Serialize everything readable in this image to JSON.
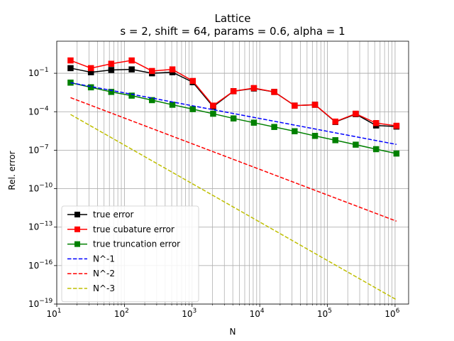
{
  "chart_data": {
    "type": "line",
    "title": "Lattice",
    "subtitle": "s = 2, shift = 64, params = 0.6, alpha = 1",
    "xlabel": "N",
    "ylabel": "Rel. error",
    "xscale": "log",
    "yscale": "log",
    "xlim": [
      10,
      1584893
    ],
    "ylim": [
      1e-19,
      31.6
    ],
    "grid": "major and minor on x, major on y",
    "legend_position": "lower-left",
    "x_ticks": [
      {
        "value": 10,
        "base": "10",
        "exp": "1"
      },
      {
        "value": 100,
        "base": "10",
        "exp": "2"
      },
      {
        "value": 1000,
        "base": "10",
        "exp": "3"
      },
      {
        "value": 10000,
        "base": "10",
        "exp": "4"
      },
      {
        "value": 100000,
        "base": "10",
        "exp": "5"
      },
      {
        "value": 1000000,
        "base": "10",
        "exp": "6"
      }
    ],
    "y_ticks": [
      {
        "value": 1e-19,
        "base": "10",
        "exp": "−19"
      },
      {
        "value": 1e-16,
        "base": "10",
        "exp": "−16"
      },
      {
        "value": 1e-13,
        "base": "10",
        "exp": "−13"
      },
      {
        "value": 1e-10,
        "base": "10",
        "exp": "−10"
      },
      {
        "value": 1e-07,
        "base": "10",
        "exp": "−7"
      },
      {
        "value": 0.0001,
        "base": "10",
        "exp": "−4"
      },
      {
        "value": 0.1,
        "base": "10",
        "exp": "−1"
      }
    ],
    "x": [
      16,
      32,
      64,
      128,
      256,
      512,
      1024,
      2048,
      4096,
      8192,
      16384,
      32768,
      65536,
      131072,
      262144,
      524288,
      1048576
    ],
    "series": [
      {
        "name": "true error",
        "color": "#000000",
        "style": "solid",
        "marker": "square",
        "values": [
          0.25,
          0.12,
          0.18,
          0.2,
          0.1,
          0.12,
          0.02,
          0.00025,
          0.004,
          0.0065,
          0.0035,
          0.0003,
          0.00035,
          1.6e-05,
          6.5e-05,
          8.5e-06,
          7e-06
        ]
      },
      {
        "name": "true cubature error",
        "color": "#ff0000",
        "style": "solid",
        "marker": "square",
        "values": [
          1.0,
          0.25,
          0.55,
          1.0,
          0.15,
          0.2,
          0.025,
          0.0003,
          0.004,
          0.007,
          0.0035,
          0.0003,
          0.00035,
          1.7e-05,
          7e-05,
          1.3e-05,
          8e-06
        ]
      },
      {
        "name": "true truncation error",
        "color": "#008000",
        "style": "solid",
        "marker": "square",
        "values": [
          0.0185,
          0.008,
          0.0035,
          0.0018,
          0.0008,
          0.00035,
          0.00016,
          7e-05,
          3e-05,
          1.4e-05,
          6.5e-06,
          3e-06,
          1.3e-06,
          6e-07,
          2.7e-07,
          1.2e-07,
          5.5e-08
        ]
      },
      {
        "name": "N^-1",
        "color": "#0000ff",
        "style": "dashed",
        "marker": "none",
        "values": [
          0.0185,
          0.00925,
          0.004625,
          0.0023125,
          0.00115625,
          0.000578125,
          0.000289063,
          0.000144531,
          7.22656e-05,
          3.61328e-05,
          1.80664e-05,
          9.0332e-06,
          4.5166e-06,
          2.2583e-06,
          1.12915e-06,
          5.64575e-07,
          2.82288e-07
        ]
      },
      {
        "name": "N^-2",
        "color": "#ff0000",
        "style": "dashed",
        "marker": "none",
        "values": [
          0.00125,
          0.0003125,
          7.8125e-05,
          1.95313e-05,
          4.88281e-06,
          1.2207e-06,
          3.05176e-07,
          7.62939e-08,
          1.90735e-08,
          4.76837e-09,
          1.19209e-09,
          2.98023e-10,
          7.45058e-11,
          1.86265e-11,
          4.65661e-12,
          1.16415e-12,
          2.91038e-13
        ]
      },
      {
        "name": "N^-3",
        "color": "#bfbf00",
        "style": "dashed",
        "marker": "none",
        "values": [
          6.1e-05,
          7.625e-06,
          9.53125e-07,
          1.19141e-07,
          1.48926e-08,
          1.86157e-09,
          2.32697e-10,
          2.90871e-11,
          3.63588e-12,
          4.54485e-13,
          5.68107e-14,
          7.10133e-15,
          8.87667e-16,
          1.10958e-16,
          1.38698e-17,
          1.73372e-18,
          2.16716e-19
        ]
      }
    ]
  }
}
